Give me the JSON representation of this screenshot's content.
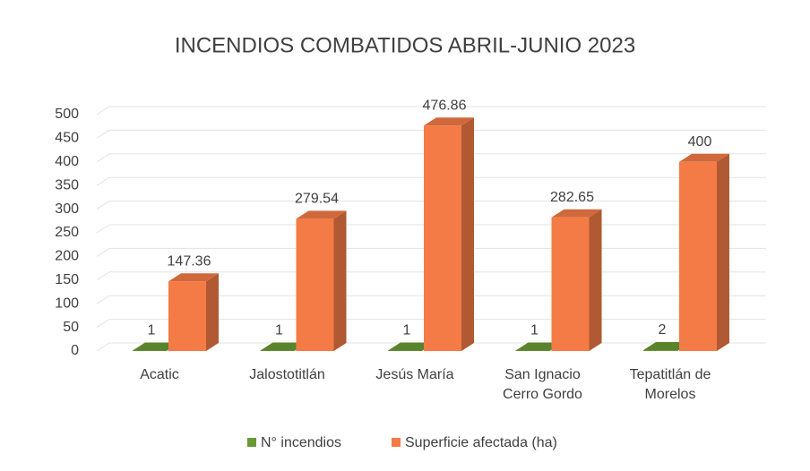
{
  "chart_data": {
    "type": "bar",
    "title": "INCENDIOS COMBATIDOS ABRIL-JUNIO 2023",
    "categories": [
      "Acatic",
      "Jalostotitlán",
      "Jesús María",
      "San Ignacio Cerro Gordo",
      "Tepatitlán de Morelos"
    ],
    "series": [
      {
        "name": "N° incendios",
        "color": "#6a9a35",
        "values": [
          1,
          1,
          1,
          1,
          2
        ]
      },
      {
        "name": "Superficie afectada (ha)",
        "color": "#f47b45",
        "values": [
          147.36,
          279.54,
          476.86,
          282.65,
          400
        ]
      }
    ],
    "ylim": [
      0,
      500
    ],
    "yticks": [
      0,
      50,
      100,
      150,
      200,
      250,
      300,
      350,
      400,
      450,
      500
    ],
    "grid": true,
    "legend": "bottom"
  }
}
